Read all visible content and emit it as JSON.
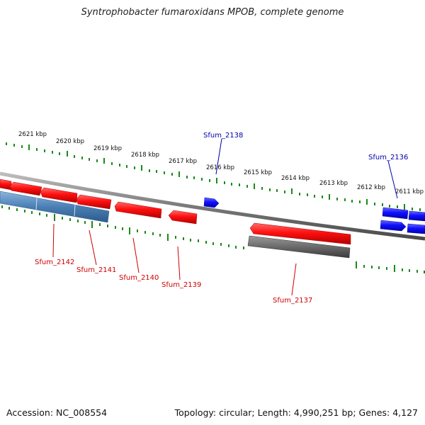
{
  "title": "Syntrophobacter fumaroxidans MPOB, complete genome",
  "footer": {
    "accession": "Accession: NC_008554",
    "stats": "Topology: circular; Length: 4,990,251 bp; Genes: 4,127"
  },
  "colors": {
    "forward_gene": "#ff1010",
    "reverse_gene": "#1010ff",
    "feature_gray": "#777777",
    "feature_blue": "#4a7fb5",
    "tick": "#1a8a1a",
    "backbone": "#8a8a8a",
    "label_red": "#cc0000",
    "label_blue": "#0000aa"
  },
  "scale_labels": [
    "2621 kbp",
    "2620 kbp",
    "2619 kbp",
    "2618 kbp",
    "2617 kbp",
    "2616 kbp",
    "2615 kbp",
    "2614 kbp",
    "2613 kbp",
    "2612 kbp",
    "2611 kbp"
  ],
  "gene_labels": [
    "Sfum_2142",
    "Sfum_2141",
    "Sfum_2140",
    "Sfum_2139",
    "Sfum_2138",
    "Sfum_2137",
    "Sfum_2136"
  ]
}
